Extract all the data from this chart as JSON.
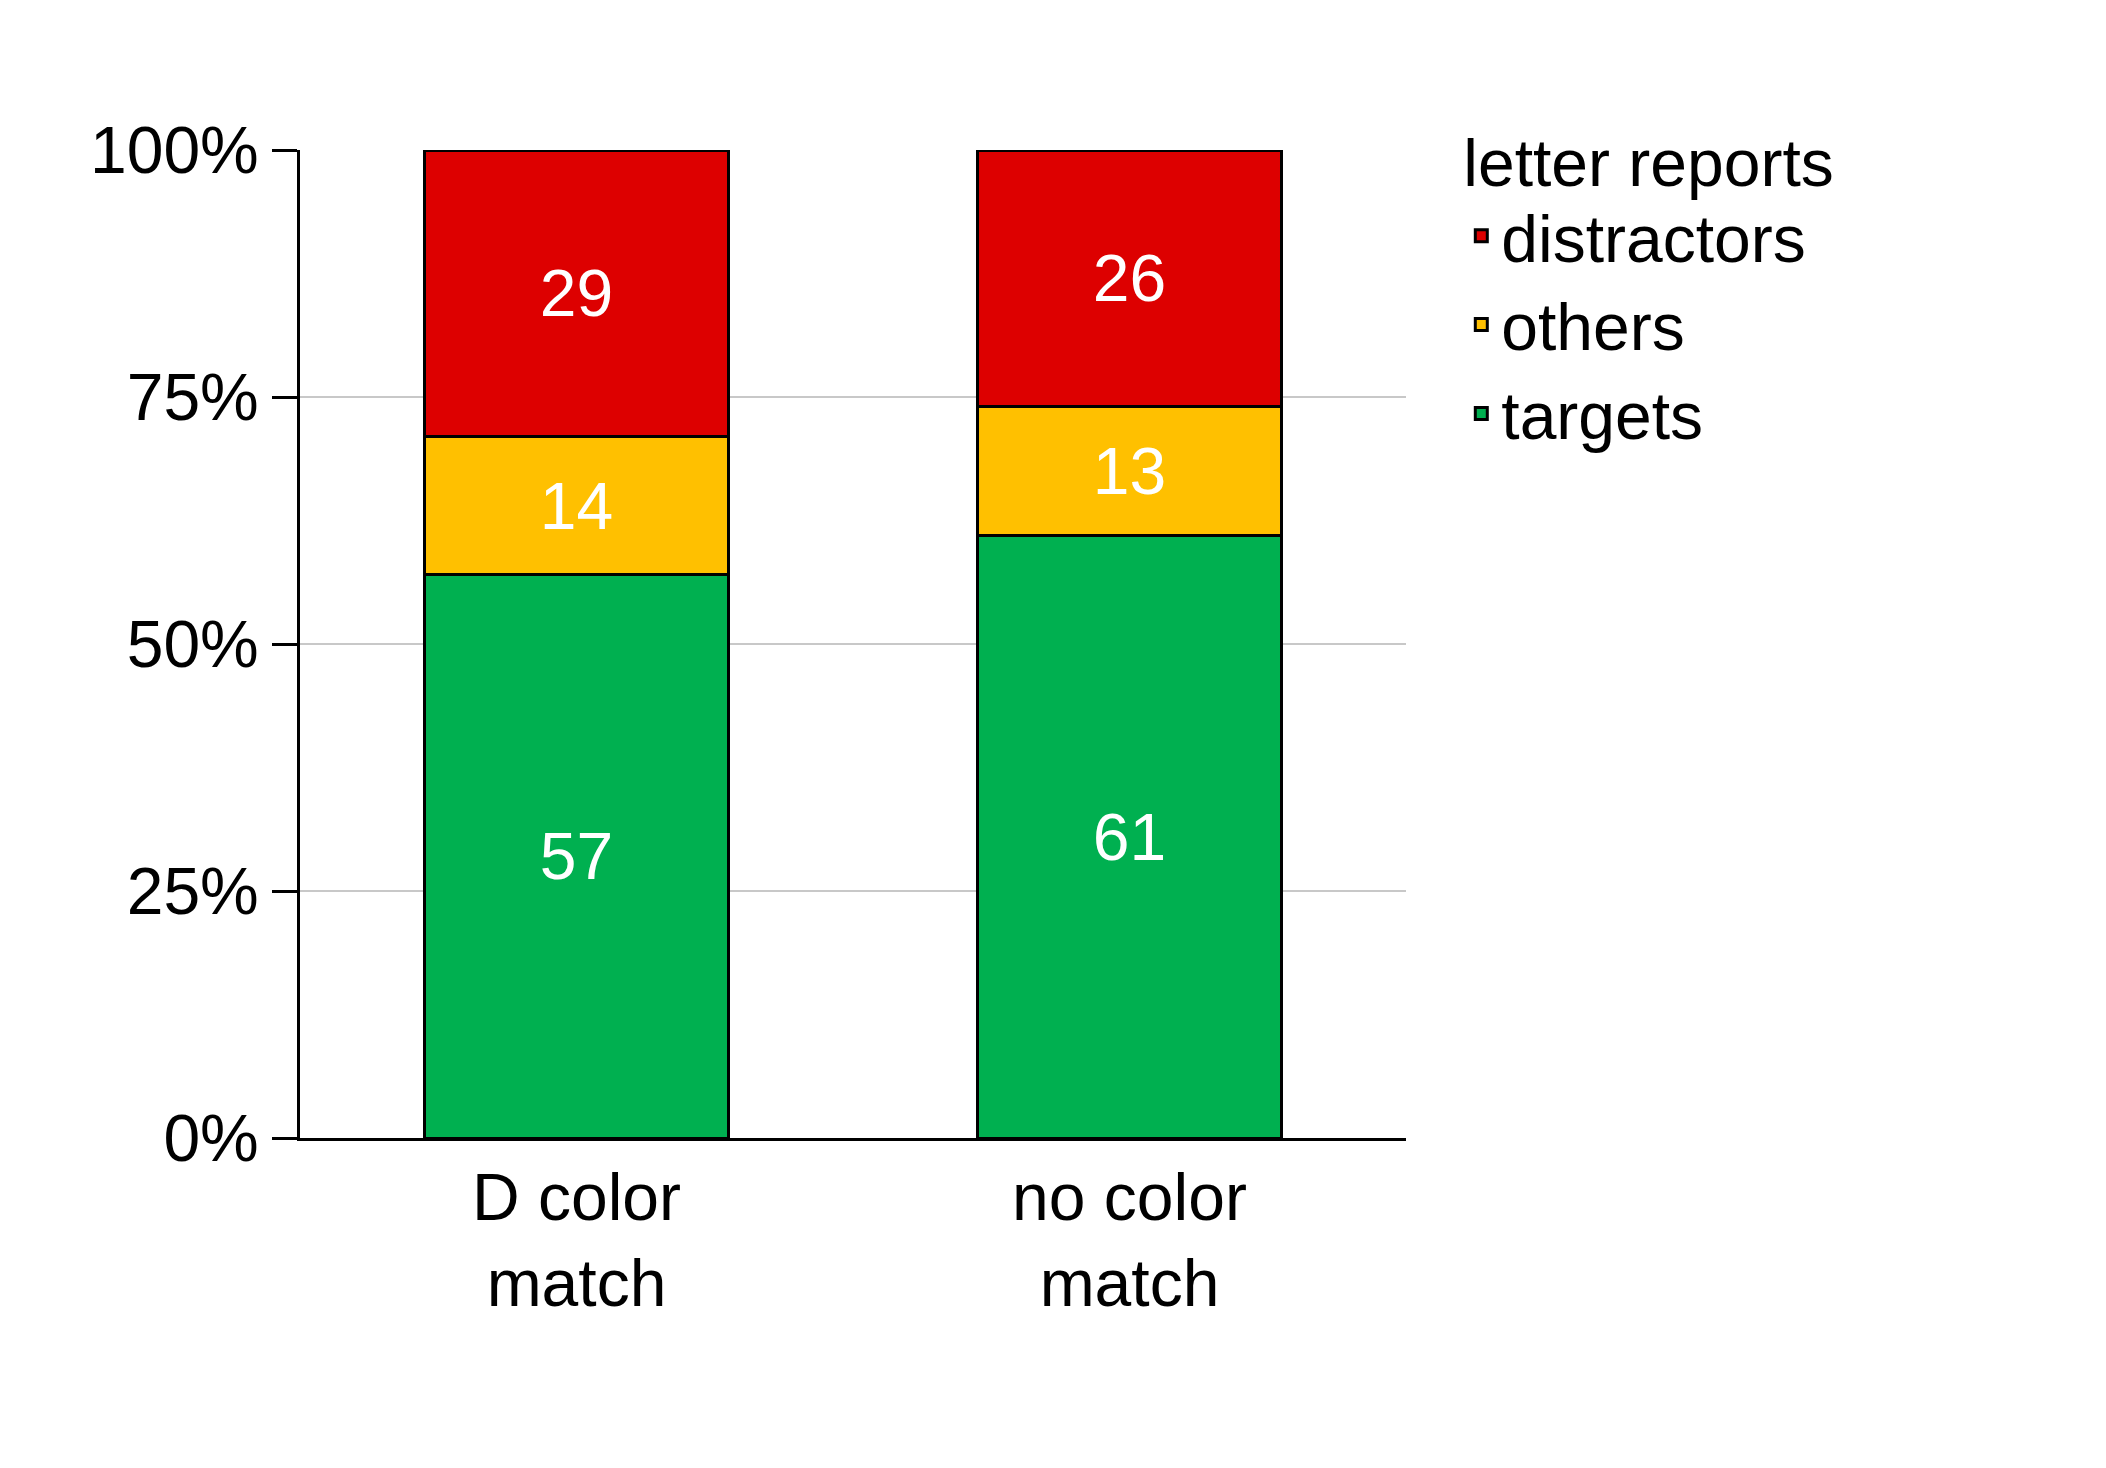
{
  "chart_data": {
    "type": "bar",
    "stacked": true,
    "legend_title": "letter reports",
    "legend": "top right",
    "grid": "y",
    "data_labels": true,
    "categories": [
      "D color match",
      "no color match"
    ],
    "series": [
      {
        "name": "targets",
        "color": "#00b050",
        "values": [
          57,
          61
        ]
      },
      {
        "name": "others",
        "color": "#ffc000",
        "values": [
          14,
          13
        ]
      },
      {
        "name": "distractors",
        "color": "#dd0000",
        "values": [
          29,
          26
        ]
      }
    ],
    "ylim": [
      0,
      100
    ],
    "yticks": [
      {
        "value": 0,
        "label": "0%"
      },
      {
        "value": 25,
        "label": "25%"
      },
      {
        "value": 50,
        "label": "50%"
      },
      {
        "value": 75,
        "label": "75%"
      },
      {
        "value": 100,
        "label": "100%"
      }
    ]
  }
}
